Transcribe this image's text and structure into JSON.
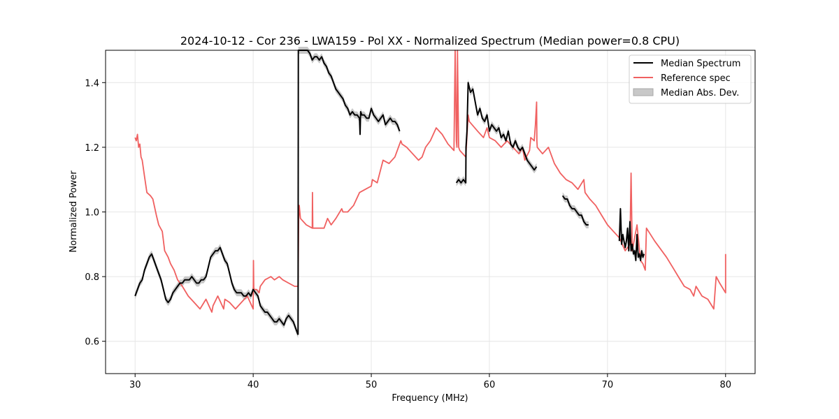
{
  "chart_data": {
    "type": "line",
    "title": "2024-10-12 - Cor 236 - LWA159 - Pol XX - Normalized Spectrum (Median power=0.8 CPU)",
    "xlabel": "Frequency (MHz)",
    "ylabel": "Normalized Power",
    "xlim": [
      27.5,
      82.5
    ],
    "ylim": [
      0.5,
      1.5
    ],
    "x_ticks": [
      30,
      40,
      50,
      60,
      70,
      80
    ],
    "y_ticks": [
      0.6,
      0.8,
      1.0,
      1.2,
      1.4
    ],
    "grid": true,
    "legend_position": "top-right",
    "legend": [
      {
        "label": "Median Spectrum",
        "kind": "line",
        "color": "#000000"
      },
      {
        "label": "Reference spec",
        "kind": "line",
        "color": "#f06060"
      },
      {
        "label": "Median Abs. Dev.",
        "kind": "patch",
        "color": "#c8c8c8"
      }
    ],
    "series": [
      {
        "name": "Reference spec",
        "color": "#f06060",
        "x": [
          30.0,
          30.1,
          30.2,
          30.3,
          30.4,
          30.5,
          30.6,
          30.8,
          31.0,
          31.3,
          31.5,
          31.8,
          32.0,
          32.3,
          32.5,
          32.8,
          33.0,
          33.3,
          33.6,
          34.0,
          34.5,
          35.0,
          35.5,
          36.0,
          36.5,
          36.6,
          37.0,
          37.5,
          37.6,
          38.0,
          38.5,
          39.0,
          39.5,
          40.0,
          40.02,
          40.05,
          40.3,
          40.5,
          40.6,
          41.0,
          41.5,
          41.8,
          42.2,
          42.5,
          43.0,
          43.5,
          43.8,
          43.85,
          43.9,
          44.0,
          44.5,
          45.0,
          45.02,
          45.05,
          45.5,
          46.0,
          46.3,
          46.6,
          47.0,
          47.5,
          47.6,
          48.0,
          48.5,
          49.0,
          49.5,
          50.0,
          50.1,
          50.5,
          51.0,
          51.5,
          52.0,
          52.5,
          52.6,
          53.0,
          53.5,
          54.0,
          54.3,
          54.6,
          55.0,
          55.5,
          56.0,
          56.5,
          57.0,
          57.1,
          57.2,
          57.25,
          57.3,
          57.4,
          57.5,
          58.0,
          58.2,
          58.3,
          59.0,
          59.5,
          59.8,
          60.0,
          60.5,
          61.0,
          61.5,
          62.0,
          62.5,
          62.8,
          63.0,
          63.4,
          63.5,
          63.8,
          63.9,
          64.0,
          64.02,
          64.05,
          64.5,
          65.0,
          65.5,
          66.0,
          66.5,
          67.0,
          67.5,
          68.0,
          68.05,
          68.1,
          68.5,
          69.0,
          69.5,
          70.0,
          70.5,
          71.0,
          71.5,
          71.9,
          72.0,
          72.1,
          72.5,
          72.8,
          73.0,
          73.2,
          73.3,
          74.0,
          75.0,
          75.5,
          76.0,
          76.5,
          77.0,
          77.3,
          77.5,
          78.0,
          78.5,
          79.0,
          79.2,
          79.5,
          80.0,
          80.0
        ],
        "values": [
          1.23,
          1.22,
          1.24,
          1.2,
          1.21,
          1.17,
          1.16,
          1.11,
          1.06,
          1.05,
          1.04,
          0.99,
          0.96,
          0.94,
          0.88,
          0.86,
          0.84,
          0.82,
          0.79,
          0.77,
          0.74,
          0.72,
          0.7,
          0.73,
          0.69,
          0.71,
          0.74,
          0.7,
          0.73,
          0.72,
          0.7,
          0.72,
          0.74,
          0.7,
          0.85,
          0.76,
          0.76,
          0.75,
          0.77,
          0.79,
          0.8,
          0.79,
          0.8,
          0.79,
          0.78,
          0.77,
          0.77,
          0.98,
          1.02,
          0.98,
          0.96,
          0.95,
          1.06,
          0.95,
          0.95,
          0.95,
          0.98,
          0.96,
          0.98,
          1.01,
          1.0,
          1.0,
          1.02,
          1.06,
          1.07,
          1.08,
          1.1,
          1.09,
          1.16,
          1.15,
          1.17,
          1.22,
          1.21,
          1.2,
          1.18,
          1.16,
          1.17,
          1.2,
          1.22,
          1.26,
          1.24,
          1.21,
          1.19,
          1.5,
          1.22,
          1.2,
          1.5,
          1.2,
          1.19,
          1.17,
          1.3,
          1.28,
          1.25,
          1.23,
          1.26,
          1.23,
          1.22,
          1.2,
          1.22,
          1.2,
          1.18,
          1.2,
          1.16,
          1.19,
          1.23,
          1.22,
          1.27,
          1.34,
          1.22,
          1.2,
          1.18,
          1.2,
          1.15,
          1.12,
          1.1,
          1.09,
          1.07,
          1.1,
          1.08,
          1.06,
          1.04,
          1.02,
          0.99,
          0.96,
          0.94,
          0.92,
          0.88,
          0.9,
          1.12,
          0.88,
          0.96,
          0.85,
          0.84,
          0.82,
          0.95,
          0.91,
          0.86,
          0.83,
          0.8,
          0.77,
          0.76,
          0.74,
          0.77,
          0.74,
          0.73,
          0.7,
          0.8,
          0.78,
          0.75,
          0.87
        ]
      },
      {
        "name": "Median Spectrum",
        "color": "#000000",
        "segments": [
          {
            "x": [
              30.0,
              30.2,
              30.4,
              30.6,
              30.8,
              31.0,
              31.2,
              31.4,
              31.6,
              31.8,
              32.0,
              32.2,
              32.4,
              32.6,
              32.8,
              33.0,
              33.2,
              33.4,
              33.6,
              33.8,
              34.0,
              34.2,
              34.4,
              34.6,
              34.8,
              35.0,
              35.2,
              35.4,
              35.6,
              35.8,
              36.0,
              36.2,
              36.4,
              36.6,
              36.8,
              37.0,
              37.2,
              37.4,
              37.6,
              37.8,
              38.0,
              38.2,
              38.4,
              38.6,
              38.8,
              39.0,
              39.2,
              39.4,
              39.6,
              39.8,
              40.0,
              40.2,
              40.4,
              40.6,
              40.8,
              41.0,
              41.2,
              41.4,
              41.6,
              41.8,
              42.0,
              42.2,
              42.4,
              42.6,
              42.8,
              43.0,
              43.2,
              43.4,
              43.6,
              43.8
            ],
            "values": [
              0.74,
              0.76,
              0.78,
              0.79,
              0.82,
              0.84,
              0.86,
              0.87,
              0.85,
              0.83,
              0.81,
              0.79,
              0.76,
              0.73,
              0.72,
              0.73,
              0.75,
              0.76,
              0.77,
              0.78,
              0.78,
              0.79,
              0.79,
              0.79,
              0.8,
              0.79,
              0.78,
              0.78,
              0.79,
              0.79,
              0.8,
              0.83,
              0.86,
              0.87,
              0.88,
              0.88,
              0.89,
              0.87,
              0.85,
              0.84,
              0.81,
              0.78,
              0.76,
              0.75,
              0.75,
              0.75,
              0.74,
              0.74,
              0.75,
              0.74,
              0.76,
              0.75,
              0.74,
              0.71,
              0.7,
              0.69,
              0.69,
              0.68,
              0.67,
              0.66,
              0.66,
              0.67,
              0.66,
              0.65,
              0.67,
              0.68,
              0.67,
              0.66,
              0.64,
              0.62
            ]
          },
          {
            "x": [
              43.8,
              43.82,
              44.0,
              44.2,
              44.4,
              44.6,
              44.8,
              45.0,
              45.2,
              45.4,
              45.6,
              45.8,
              46.0,
              46.2,
              46.4,
              46.6,
              46.8,
              47.0,
              47.2,
              47.4,
              47.6,
              47.8,
              48.0,
              48.2,
              48.4,
              48.6,
              48.8,
              49.0,
              49.05,
              49.1,
              49.2,
              49.4,
              49.6,
              49.8,
              50.0,
              50.2,
              50.4,
              50.6,
              50.8,
              51.0,
              51.2,
              51.4,
              51.6,
              51.8,
              52.0,
              52.2,
              52.4
            ],
            "values": [
              0.62,
              1.5,
              1.52,
              1.51,
              1.52,
              1.5,
              1.49,
              1.47,
              1.48,
              1.48,
              1.47,
              1.48,
              1.46,
              1.45,
              1.43,
              1.42,
              1.4,
              1.38,
              1.37,
              1.36,
              1.35,
              1.33,
              1.32,
              1.3,
              1.31,
              1.3,
              1.3,
              1.29,
              1.24,
              1.31,
              1.3,
              1.3,
              1.29,
              1.29,
              1.32,
              1.3,
              1.29,
              1.28,
              1.29,
              1.3,
              1.27,
              1.28,
              1.29,
              1.28,
              1.28,
              1.27,
              1.25
            ]
          },
          {
            "x": [
              57.2,
              57.4,
              57.6,
              57.8,
              58.0,
              58.02,
              58.1,
              58.2,
              58.4,
              58.6,
              58.8,
              59.0,
              59.2,
              59.4,
              59.6,
              59.8,
              60.0,
              60.2,
              60.4,
              60.6,
              60.8,
              61.0,
              61.2,
              61.4,
              61.6,
              61.8,
              62.0,
              62.2,
              62.4,
              62.6,
              62.8,
              63.0,
              63.2,
              63.4,
              63.6,
              63.8,
              64.0
            ],
            "values": [
              1.09,
              1.1,
              1.09,
              1.1,
              1.09,
              1.2,
              1.25,
              1.4,
              1.37,
              1.38,
              1.34,
              1.3,
              1.32,
              1.29,
              1.28,
              1.3,
              1.25,
              1.27,
              1.26,
              1.25,
              1.26,
              1.23,
              1.24,
              1.22,
              1.25,
              1.21,
              1.2,
              1.22,
              1.2,
              1.19,
              1.2,
              1.18,
              1.16,
              1.15,
              1.14,
              1.13,
              1.14
            ]
          },
          {
            "x": [
              66.2,
              66.4,
              66.6,
              66.8,
              67.0,
              67.2,
              67.4,
              67.6,
              67.8,
              68.0,
              68.2,
              68.4
            ],
            "values": [
              1.05,
              1.04,
              1.04,
              1.02,
              1.01,
              1.01,
              1.0,
              0.99,
              0.99,
              0.97,
              0.96,
              0.96
            ]
          },
          {
            "x": [
              71.0,
              71.1,
              71.2,
              71.3,
              71.4,
              71.5,
              71.6,
              71.7,
              71.8,
              71.9,
              72.0,
              72.1,
              72.2,
              72.3,
              72.4,
              72.5,
              72.6,
              72.7,
              72.8,
              72.9,
              73.0,
              73.1
            ],
            "values": [
              0.91,
              1.01,
              0.9,
              0.93,
              0.91,
              0.89,
              0.91,
              0.95,
              0.88,
              0.97,
              0.88,
              0.9,
              0.87,
              0.88,
              0.85,
              0.93,
              0.86,
              0.87,
              0.85,
              0.88,
              0.86,
              0.87
            ]
          }
        ]
      }
    ]
  }
}
